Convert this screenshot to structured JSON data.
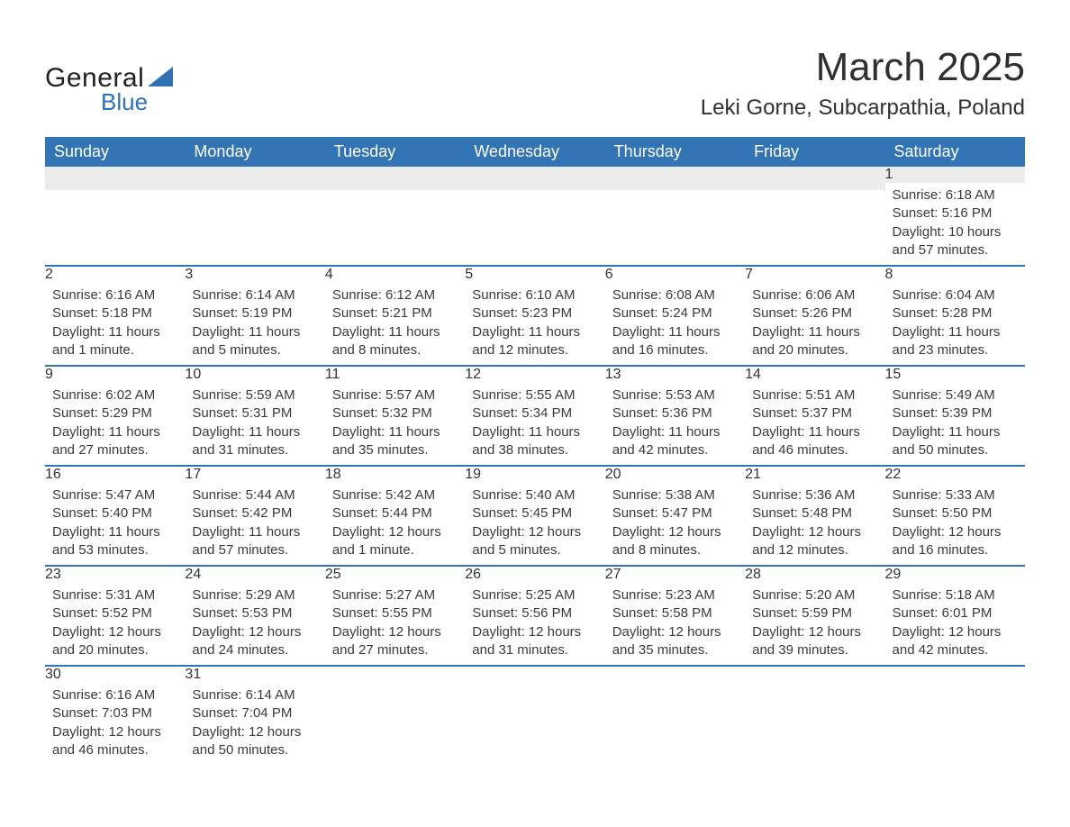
{
  "brand": {
    "general": "General",
    "blue": "Blue"
  },
  "title": {
    "month": "March 2025",
    "location": "Leki Gorne, Subcarpathia, Poland"
  },
  "colors": {
    "header_bg": "#3374b5",
    "header_text": "#ffffff",
    "daynum_bg": "#ececec",
    "row_border": "#3374b5",
    "text": "#333333",
    "brand_blue": "#2f71b3"
  },
  "days_of_week": [
    "Sunday",
    "Monday",
    "Tuesday",
    "Wednesday",
    "Thursday",
    "Friday",
    "Saturday"
  ],
  "weeks": [
    [
      {
        "n": "",
        "sunrise": "",
        "sunset": "",
        "daylight": ""
      },
      {
        "n": "",
        "sunrise": "",
        "sunset": "",
        "daylight": ""
      },
      {
        "n": "",
        "sunrise": "",
        "sunset": "",
        "daylight": ""
      },
      {
        "n": "",
        "sunrise": "",
        "sunset": "",
        "daylight": ""
      },
      {
        "n": "",
        "sunrise": "",
        "sunset": "",
        "daylight": ""
      },
      {
        "n": "",
        "sunrise": "",
        "sunset": "",
        "daylight": ""
      },
      {
        "n": "1",
        "sunrise": "Sunrise: 6:18 AM",
        "sunset": "Sunset: 5:16 PM",
        "daylight": "Daylight: 10 hours and 57 minutes."
      }
    ],
    [
      {
        "n": "2",
        "sunrise": "Sunrise: 6:16 AM",
        "sunset": "Sunset: 5:18 PM",
        "daylight": "Daylight: 11 hours and 1 minute."
      },
      {
        "n": "3",
        "sunrise": "Sunrise: 6:14 AM",
        "sunset": "Sunset: 5:19 PM",
        "daylight": "Daylight: 11 hours and 5 minutes."
      },
      {
        "n": "4",
        "sunrise": "Sunrise: 6:12 AM",
        "sunset": "Sunset: 5:21 PM",
        "daylight": "Daylight: 11 hours and 8 minutes."
      },
      {
        "n": "5",
        "sunrise": "Sunrise: 6:10 AM",
        "sunset": "Sunset: 5:23 PM",
        "daylight": "Daylight: 11 hours and 12 minutes."
      },
      {
        "n": "6",
        "sunrise": "Sunrise: 6:08 AM",
        "sunset": "Sunset: 5:24 PM",
        "daylight": "Daylight: 11 hours and 16 minutes."
      },
      {
        "n": "7",
        "sunrise": "Sunrise: 6:06 AM",
        "sunset": "Sunset: 5:26 PM",
        "daylight": "Daylight: 11 hours and 20 minutes."
      },
      {
        "n": "8",
        "sunrise": "Sunrise: 6:04 AM",
        "sunset": "Sunset: 5:28 PM",
        "daylight": "Daylight: 11 hours and 23 minutes."
      }
    ],
    [
      {
        "n": "9",
        "sunrise": "Sunrise: 6:02 AM",
        "sunset": "Sunset: 5:29 PM",
        "daylight": "Daylight: 11 hours and 27 minutes."
      },
      {
        "n": "10",
        "sunrise": "Sunrise: 5:59 AM",
        "sunset": "Sunset: 5:31 PM",
        "daylight": "Daylight: 11 hours and 31 minutes."
      },
      {
        "n": "11",
        "sunrise": "Sunrise: 5:57 AM",
        "sunset": "Sunset: 5:32 PM",
        "daylight": "Daylight: 11 hours and 35 minutes."
      },
      {
        "n": "12",
        "sunrise": "Sunrise: 5:55 AM",
        "sunset": "Sunset: 5:34 PM",
        "daylight": "Daylight: 11 hours and 38 minutes."
      },
      {
        "n": "13",
        "sunrise": "Sunrise: 5:53 AM",
        "sunset": "Sunset: 5:36 PM",
        "daylight": "Daylight: 11 hours and 42 minutes."
      },
      {
        "n": "14",
        "sunrise": "Sunrise: 5:51 AM",
        "sunset": "Sunset: 5:37 PM",
        "daylight": "Daylight: 11 hours and 46 minutes."
      },
      {
        "n": "15",
        "sunrise": "Sunrise: 5:49 AM",
        "sunset": "Sunset: 5:39 PM",
        "daylight": "Daylight: 11 hours and 50 minutes."
      }
    ],
    [
      {
        "n": "16",
        "sunrise": "Sunrise: 5:47 AM",
        "sunset": "Sunset: 5:40 PM",
        "daylight": "Daylight: 11 hours and 53 minutes."
      },
      {
        "n": "17",
        "sunrise": "Sunrise: 5:44 AM",
        "sunset": "Sunset: 5:42 PM",
        "daylight": "Daylight: 11 hours and 57 minutes."
      },
      {
        "n": "18",
        "sunrise": "Sunrise: 5:42 AM",
        "sunset": "Sunset: 5:44 PM",
        "daylight": "Daylight: 12 hours and 1 minute."
      },
      {
        "n": "19",
        "sunrise": "Sunrise: 5:40 AM",
        "sunset": "Sunset: 5:45 PM",
        "daylight": "Daylight: 12 hours and 5 minutes."
      },
      {
        "n": "20",
        "sunrise": "Sunrise: 5:38 AM",
        "sunset": "Sunset: 5:47 PM",
        "daylight": "Daylight: 12 hours and 8 minutes."
      },
      {
        "n": "21",
        "sunrise": "Sunrise: 5:36 AM",
        "sunset": "Sunset: 5:48 PM",
        "daylight": "Daylight: 12 hours and 12 minutes."
      },
      {
        "n": "22",
        "sunrise": "Sunrise: 5:33 AM",
        "sunset": "Sunset: 5:50 PM",
        "daylight": "Daylight: 12 hours and 16 minutes."
      }
    ],
    [
      {
        "n": "23",
        "sunrise": "Sunrise: 5:31 AM",
        "sunset": "Sunset: 5:52 PM",
        "daylight": "Daylight: 12 hours and 20 minutes."
      },
      {
        "n": "24",
        "sunrise": "Sunrise: 5:29 AM",
        "sunset": "Sunset: 5:53 PM",
        "daylight": "Daylight: 12 hours and 24 minutes."
      },
      {
        "n": "25",
        "sunrise": "Sunrise: 5:27 AM",
        "sunset": "Sunset: 5:55 PM",
        "daylight": "Daylight: 12 hours and 27 minutes."
      },
      {
        "n": "26",
        "sunrise": "Sunrise: 5:25 AM",
        "sunset": "Sunset: 5:56 PM",
        "daylight": "Daylight: 12 hours and 31 minutes."
      },
      {
        "n": "27",
        "sunrise": "Sunrise: 5:23 AM",
        "sunset": "Sunset: 5:58 PM",
        "daylight": "Daylight: 12 hours and 35 minutes."
      },
      {
        "n": "28",
        "sunrise": "Sunrise: 5:20 AM",
        "sunset": "Sunset: 5:59 PM",
        "daylight": "Daylight: 12 hours and 39 minutes."
      },
      {
        "n": "29",
        "sunrise": "Sunrise: 5:18 AM",
        "sunset": "Sunset: 6:01 PM",
        "daylight": "Daylight: 12 hours and 42 minutes."
      }
    ],
    [
      {
        "n": "30",
        "sunrise": "Sunrise: 6:16 AM",
        "sunset": "Sunset: 7:03 PM",
        "daylight": "Daylight: 12 hours and 46 minutes."
      },
      {
        "n": "31",
        "sunrise": "Sunrise: 6:14 AM",
        "sunset": "Sunset: 7:04 PM",
        "daylight": "Daylight: 12 hours and 50 minutes."
      },
      {
        "n": "",
        "sunrise": "",
        "sunset": "",
        "daylight": ""
      },
      {
        "n": "",
        "sunrise": "",
        "sunset": "",
        "daylight": ""
      },
      {
        "n": "",
        "sunrise": "",
        "sunset": "",
        "daylight": ""
      },
      {
        "n": "",
        "sunrise": "",
        "sunset": "",
        "daylight": ""
      },
      {
        "n": "",
        "sunrise": "",
        "sunset": "",
        "daylight": ""
      }
    ]
  ]
}
